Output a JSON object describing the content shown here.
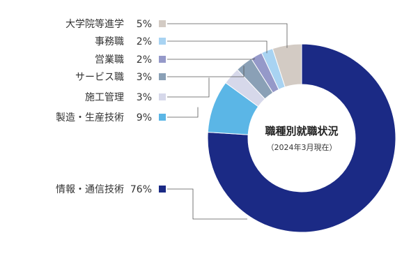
{
  "chart_data": {
    "type": "pie",
    "title": "職種別就職状況",
    "subtitle": "（2024年3月現在）",
    "unit": "%",
    "slices": [
      {
        "label": "情報・通信技術",
        "value": 76,
        "color": "#1b2a85"
      },
      {
        "label": "製造・生産技術",
        "value": 9,
        "color": "#5bb6e6"
      },
      {
        "label": "施工管理",
        "value": 3,
        "color": "#d6d8ea"
      },
      {
        "label": "サービス職",
        "value": 3,
        "color": "#8aa0b6"
      },
      {
        "label": "営業職",
        "value": 2,
        "color": "#9599c9"
      },
      {
        "label": "事務職",
        "value": 2,
        "color": "#a8d3f2"
      },
      {
        "label": "大学院等進学",
        "value": 5,
        "color": "#d3cbc4"
      }
    ]
  }
}
